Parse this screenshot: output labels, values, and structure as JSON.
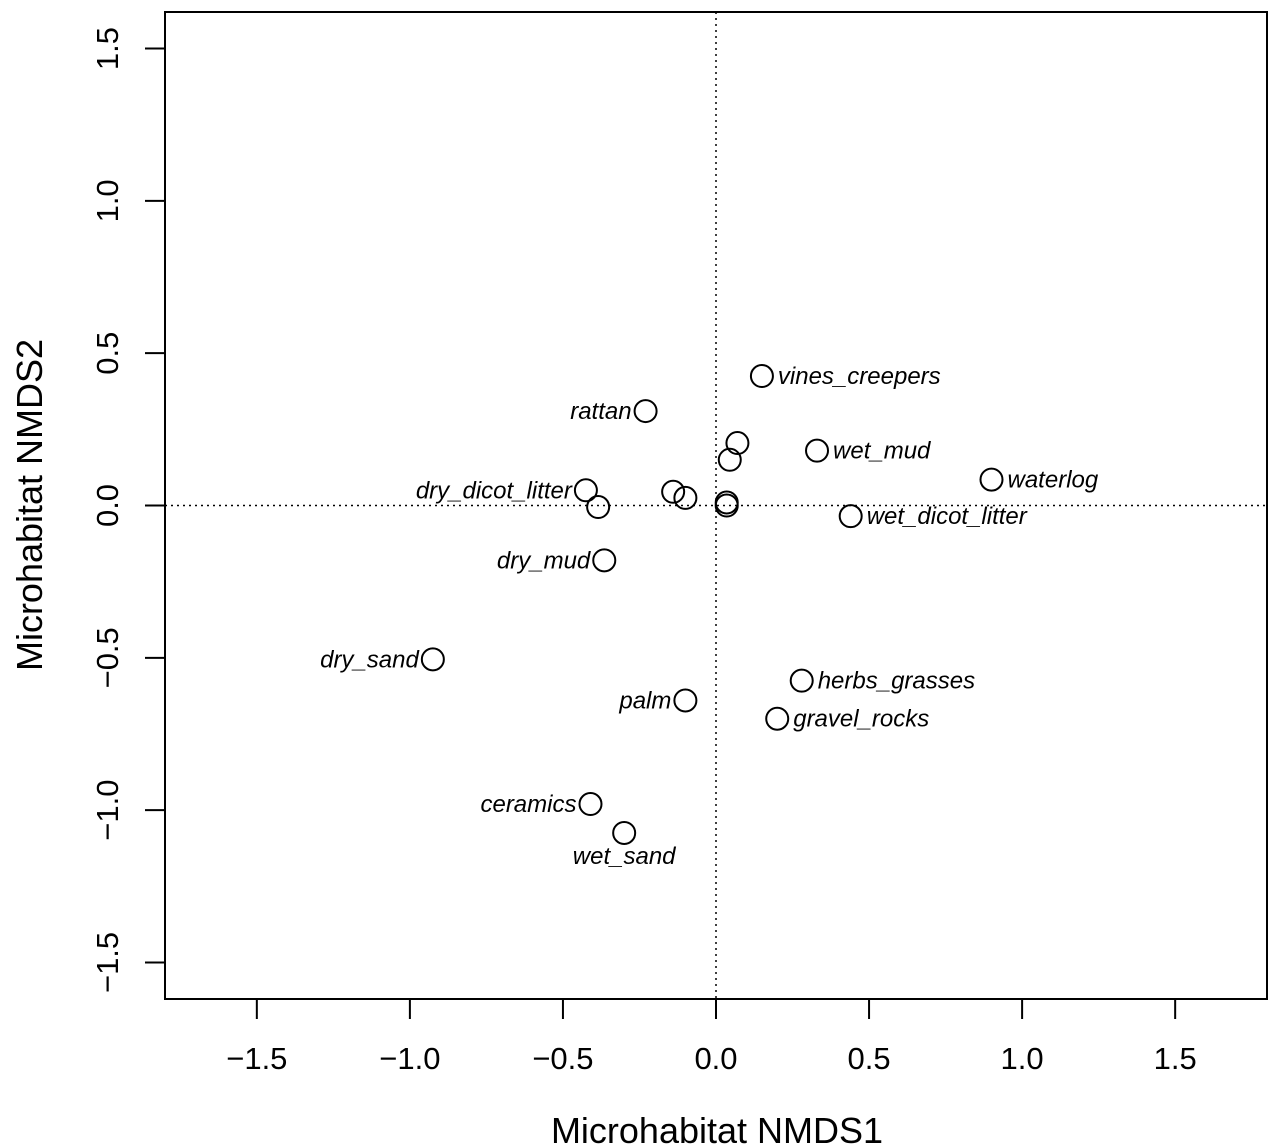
{
  "chart_data": {
    "type": "scatter",
    "xlabel": "Microhabitat NMDS1",
    "ylabel": "Microhabitat NMDS2",
    "xlim": [
      -1.8,
      1.8
    ],
    "ylim": [
      -1.62,
      1.62
    ],
    "xticks": [
      -1.5,
      -1.0,
      -0.5,
      0.0,
      0.5,
      1.0,
      1.5
    ],
    "yticks": [
      -1.5,
      -1.0,
      -0.5,
      0.0,
      0.5,
      1.0,
      1.5
    ],
    "xtick_labels": [
      "−1.5",
      "−1.0",
      "−0.5",
      "0.0",
      "0.5",
      "1.0",
      "1.5"
    ],
    "ytick_labels": [
      "−1.5",
      "−1.0",
      "−0.5",
      "0.0",
      "0.5",
      "1.0",
      "1.5"
    ],
    "reference_lines": {
      "x": 0.0,
      "y": 0.0,
      "style": "dotted"
    },
    "grid": false,
    "marker": "open-circle",
    "points": [
      {
        "x": 0.15,
        "y": 0.425,
        "label": "vines_creepers",
        "label_pos": "right"
      },
      {
        "x": -0.23,
        "y": 0.31,
        "label": "rattan",
        "label_pos": "left"
      },
      {
        "x": 0.07,
        "y": 0.205,
        "label": "",
        "label_pos": "none"
      },
      {
        "x": 0.33,
        "y": 0.18,
        "label": "wet_mud",
        "label_pos": "right"
      },
      {
        "x": 0.045,
        "y": 0.15,
        "label": "",
        "label_pos": "none"
      },
      {
        "x": 0.9,
        "y": 0.085,
        "label": "waterlog",
        "label_pos": "right"
      },
      {
        "x": -0.425,
        "y": 0.05,
        "label": "dry_dicot_litter",
        "label_pos": "left"
      },
      {
        "x": -0.14,
        "y": 0.045,
        "label": "",
        "label_pos": "none"
      },
      {
        "x": -0.1,
        "y": 0.025,
        "label": "",
        "label_pos": "none"
      },
      {
        "x": 0.035,
        "y": 0.01,
        "label": "",
        "label_pos": "none"
      },
      {
        "x": 0.035,
        "y": 0.0,
        "label": "",
        "label_pos": "none"
      },
      {
        "x": -0.385,
        "y": -0.005,
        "label": "",
        "label_pos": "none"
      },
      {
        "x": 0.44,
        "y": -0.035,
        "label": "wet_dicot_litter",
        "label_pos": "right"
      },
      {
        "x": -0.365,
        "y": -0.18,
        "label": "dry_mud",
        "label_pos": "left"
      },
      {
        "x": -0.925,
        "y": -0.505,
        "label": "dry_sand",
        "label_pos": "left"
      },
      {
        "x": 0.28,
        "y": -0.575,
        "label": "herbs_grasses",
        "label_pos": "right"
      },
      {
        "x": -0.1,
        "y": -0.64,
        "label": "palm",
        "label_pos": "left"
      },
      {
        "x": 0.2,
        "y": -0.7,
        "label": "gravel_rocks",
        "label_pos": "right"
      },
      {
        "x": -0.41,
        "y": -0.98,
        "label": "ceramics",
        "label_pos": "left"
      },
      {
        "x": -0.3,
        "y": -1.075,
        "label": "wet_sand",
        "label_pos": "below"
      }
    ]
  }
}
